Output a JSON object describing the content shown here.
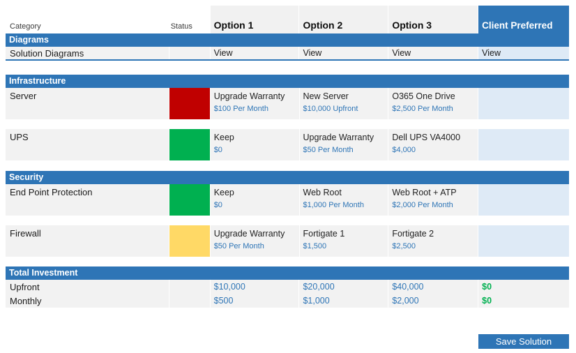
{
  "colors": {
    "header_blue": "#2E75B6",
    "client_light_blue": "#DEEAF6",
    "row_gray": "#F2F2F2",
    "price_text_blue": "#2E75B6",
    "status_red": "#C00000",
    "status_green": "#00B050",
    "status_yellow": "#FFD966",
    "total_zero_green": "#00B050"
  },
  "header": {
    "category_label": "Category",
    "status_label": "Status",
    "option_columns": [
      "Option 1",
      "Option 2",
      "Option 3"
    ],
    "client_preferred_label": "Client Preferred"
  },
  "sections": [
    {
      "title": "Diagrams",
      "rows": [
        {
          "label": "Solution Diagrams",
          "options": [
            "View",
            "View",
            "View"
          ],
          "client": "View"
        }
      ]
    },
    {
      "title": "Infrastructure",
      "rows": [
        {
          "label": "Server",
          "status_color": "#C00000",
          "options": [
            {
              "name": "Upgrade Warranty",
              "price": "$100 Per Month"
            },
            {
              "name": "New Server",
              "price": "$10,000 Upfront"
            },
            {
              "name": "O365 One Drive",
              "price": "$2,500 Per Month"
            }
          ],
          "client": ""
        },
        {
          "label": "UPS",
          "status_color": "#00B050",
          "options": [
            {
              "name": "Keep",
              "price": "$0"
            },
            {
              "name": "Upgrade Warranty",
              "price": "$50 Per Month"
            },
            {
              "name": "Dell UPS VA4000",
              "price": "$4,000"
            }
          ],
          "client": ""
        }
      ]
    },
    {
      "title": "Security",
      "rows": [
        {
          "label": "End Point Protection",
          "status_color": "#00B050",
          "options": [
            {
              "name": "Keep",
              "price": "$0"
            },
            {
              "name": "Web Root",
              "price": "$1,000 Per Month"
            },
            {
              "name": "Web Root + ATP",
              "price": "$2,000 Per Month"
            }
          ],
          "client": ""
        },
        {
          "label": "Firewall",
          "status_color": "#FFD966",
          "options": [
            {
              "name": "Upgrade Warranty",
              "price": "$50 Per Month"
            },
            {
              "name": "Fortigate 1",
              "price": "$1,500"
            },
            {
              "name": "Fortigate 2",
              "price": "$2,500"
            }
          ],
          "client": ""
        }
      ]
    }
  ],
  "totals": {
    "title": "Total Investment",
    "rows": [
      {
        "label": "Upfront",
        "values": [
          "$10,000",
          "$20,000",
          "$40,000"
        ],
        "client": "$0"
      },
      {
        "label": "Monthly",
        "values": [
          "$500",
          "$1,000",
          "$2,000"
        ],
        "client": "$0"
      }
    ]
  },
  "footer": {
    "save_button_label": "Save Solution"
  }
}
